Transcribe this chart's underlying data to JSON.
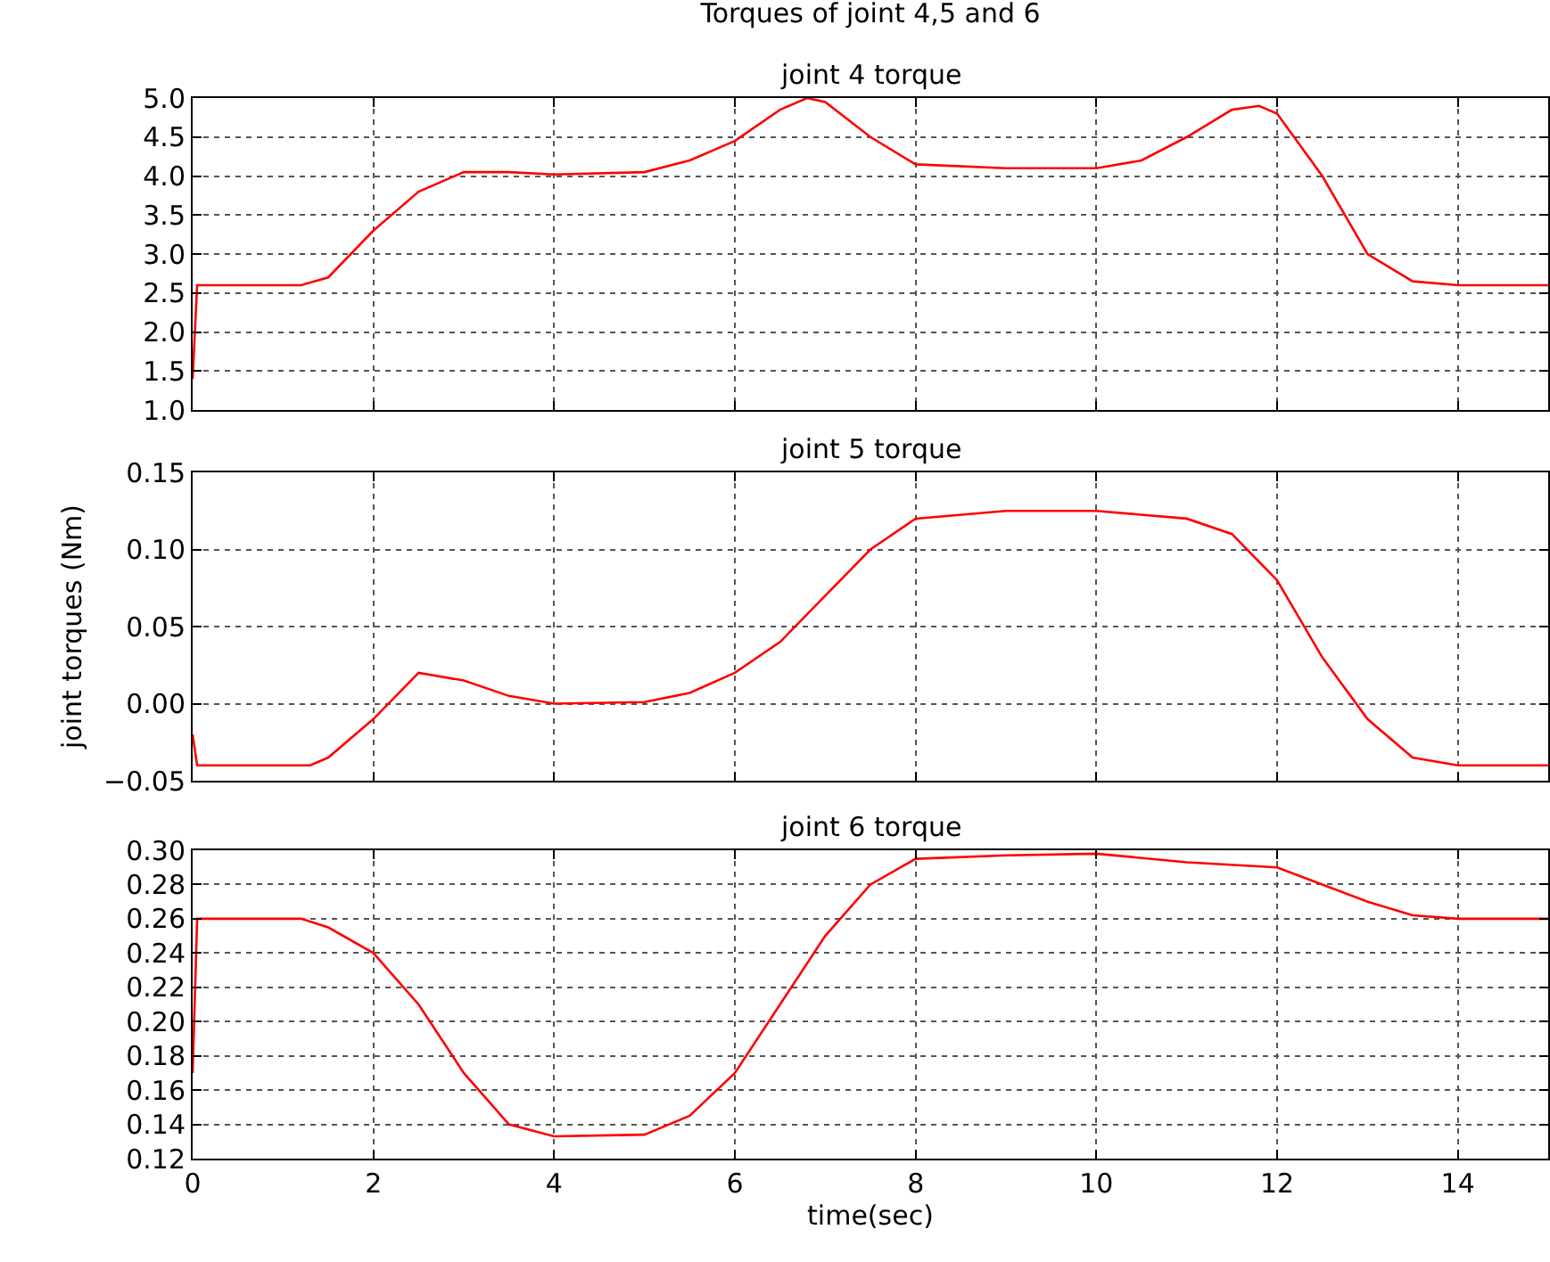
{
  "chart_data": [
    {
      "type": "line",
      "title": "Torques of joint 4,5 and 6",
      "subtitle": "joint 4 torque",
      "x": [
        0,
        0.05,
        1.2,
        1.5,
        2,
        2.5,
        3,
        3.5,
        4,
        5,
        5.5,
        6,
        6.5,
        6.8,
        7,
        7.5,
        8,
        9,
        10,
        10.5,
        11,
        11.5,
        11.8,
        12,
        12.5,
        13,
        13.5,
        14,
        15
      ],
      "series": [
        {
          "color": "#ff0000",
          "values": [
            1.4,
            2.6,
            2.6,
            2.7,
            3.3,
            3.8,
            4.05,
            4.05,
            4.02,
            4.05,
            4.2,
            4.45,
            4.85,
            5.0,
            4.95,
            4.5,
            4.15,
            4.1,
            4.1,
            4.2,
            4.5,
            4.85,
            4.9,
            4.8,
            4.0,
            3.0,
            2.65,
            2.6,
            2.6
          ]
        }
      ],
      "xlim": [
        0,
        15
      ],
      "xticks": [
        0,
        2,
        4,
        6,
        8,
        10,
        12,
        14
      ],
      "ylim": [
        1.0,
        5.0
      ],
      "yticks": [
        {
          "value": 1,
          "label": "1.0"
        },
        {
          "value": 1.5,
          "label": "1.5"
        },
        {
          "value": 2,
          "label": "2.0"
        },
        {
          "value": 2.5,
          "label": "2.5"
        },
        {
          "value": 3,
          "label": "3.0"
        },
        {
          "value": 3.5,
          "label": "3.5"
        },
        {
          "value": 4,
          "label": "4.0"
        },
        {
          "value": 4.5,
          "label": "4.5"
        },
        {
          "value": 5,
          "label": "5.0"
        }
      ],
      "grid": true,
      "tick_labels": "y"
    },
    {
      "type": "line",
      "title": "joint 5 torque",
      "ylabel": "joint torques (Nm)",
      "x": [
        0,
        0.05,
        1.3,
        1.5,
        2,
        2.5,
        3,
        3.5,
        4,
        5,
        5.5,
        6,
        6.5,
        7,
        7.5,
        8,
        9,
        10,
        11,
        11.5,
        12,
        12.5,
        13,
        13.5,
        14,
        15
      ],
      "series": [
        {
          "color": "#ff0000",
          "values": [
            -0.02,
            -0.04,
            -0.04,
            -0.035,
            -0.01,
            0.02,
            0.015,
            0.005,
            0,
            0.001,
            0.007,
            0.02,
            0.04,
            0.07,
            0.1,
            0.12,
            0.125,
            0.125,
            0.12,
            0.11,
            0.08,
            0.03,
            -0.01,
            -0.035,
            -0.04,
            -0.04
          ]
        }
      ],
      "xlim": [
        0,
        15
      ],
      "xticks": [
        0,
        2,
        4,
        6,
        8,
        10,
        12,
        14
      ],
      "ylim": [
        -0.05,
        0.15
      ],
      "yticks": [
        {
          "value": -0.05,
          "label": "−0.05"
        },
        {
          "value": 0,
          "label": "0.00"
        },
        {
          "value": 0.05,
          "label": "0.05"
        },
        {
          "value": 0.1,
          "label": "0.10"
        },
        {
          "value": 0.15,
          "label": "0.15"
        }
      ],
      "grid": true,
      "tick_labels": "y"
    },
    {
      "type": "line",
      "title": "joint 6 torque",
      "xlabel": "time(sec)",
      "x": [
        0,
        0.05,
        1.2,
        1.5,
        2,
        2.5,
        3,
        3.5,
        4,
        5,
        5.5,
        6,
        6.5,
        7,
        7.5,
        8,
        9,
        10,
        11,
        12,
        12.5,
        13,
        13.5,
        14,
        15
      ],
      "series": [
        {
          "color": "#ff0000",
          "values": [
            0.17,
            0.26,
            0.26,
            0.255,
            0.24,
            0.21,
            0.17,
            0.14,
            0.133,
            0.134,
            0.145,
            0.17,
            0.21,
            0.25,
            0.28,
            0.295,
            0.297,
            0.298,
            0.293,
            0.29,
            0.28,
            0.27,
            0.262,
            0.26,
            0.26
          ]
        }
      ],
      "xlim": [
        0,
        15
      ],
      "xticks": [
        0,
        2,
        4,
        6,
        8,
        10,
        12,
        14
      ],
      "ylim": [
        0.12,
        0.3
      ],
      "yticks": [
        {
          "value": 0.12,
          "label": "0.12"
        },
        {
          "value": 0.14,
          "label": "0.14"
        },
        {
          "value": 0.16,
          "label": "0.16"
        },
        {
          "value": 0.18,
          "label": "0.18"
        },
        {
          "value": 0.2,
          "label": "0.20"
        },
        {
          "value": 0.22,
          "label": "0.22"
        },
        {
          "value": 0.24,
          "label": "0.24"
        },
        {
          "value": 0.26,
          "label": "0.26"
        },
        {
          "value": 0.28,
          "label": "0.28"
        },
        {
          "value": 0.3,
          "label": "0.30"
        }
      ],
      "grid": true
    }
  ]
}
